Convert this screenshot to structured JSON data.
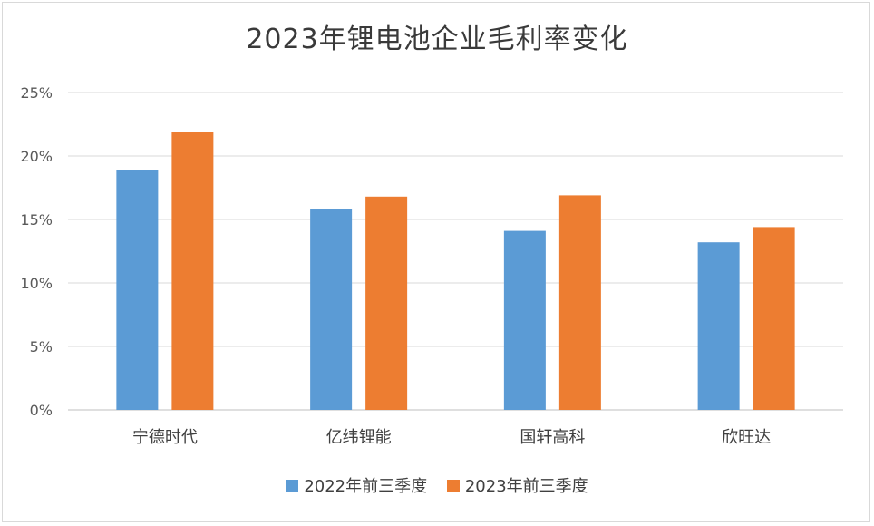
{
  "chart_data": {
    "type": "bar",
    "title": "2023年锂电池企业毛利率变化",
    "categories": [
      "宁德时代",
      "亿纬锂能",
      "国轩高科",
      "欣旺达"
    ],
    "series": [
      {
        "name": "2022年前三季度",
        "color": "#5b9bd5",
        "values": [
          18.9,
          15.8,
          14.1,
          13.2
        ]
      },
      {
        "name": "2023年前三季度",
        "color": "#ed7d31",
        "values": [
          21.9,
          16.8,
          16.9,
          14.4
        ]
      }
    ],
    "ylim": [
      0,
      25
    ],
    "yticks": [
      0,
      5,
      10,
      15,
      20,
      25
    ],
    "ytick_labels": [
      "0%",
      "5%",
      "10%",
      "15%",
      "20%",
      "25%"
    ],
    "xlabel": "",
    "ylabel": "",
    "grid": true,
    "legend": "bottom-center"
  }
}
